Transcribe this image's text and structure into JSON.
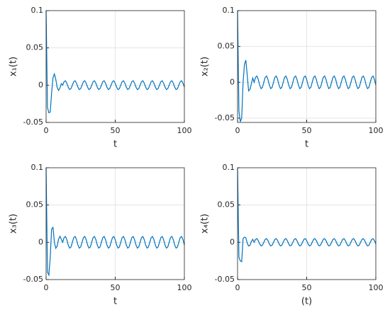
{
  "chart_data": [
    {
      "type": "line",
      "xlabel": "t",
      "ylabel": "x₁(t)",
      "color": "#0072bd",
      "grid": true,
      "xlim": [
        0,
        100
      ],
      "ylim": [
        -0.05,
        0.1
      ],
      "xticks": [
        0,
        50,
        100
      ],
      "yticks": [
        -0.05,
        0,
        0.05,
        0.1
      ],
      "x": [
        0,
        1,
        2,
        3,
        4,
        5,
        6,
        7,
        8,
        9,
        10,
        11,
        12,
        13,
        14,
        15,
        16,
        17,
        18,
        19,
        20,
        21,
        22,
        23,
        24,
        25,
        26,
        27,
        28,
        29,
        30,
        31,
        32,
        33,
        34,
        35,
        36,
        37,
        38,
        39,
        40,
        41,
        42,
        43,
        44,
        45,
        46,
        47,
        48,
        49,
        50,
        51,
        52,
        53,
        54,
        55,
        56,
        57,
        58,
        59,
        60,
        61,
        62,
        63,
        64,
        65,
        66,
        67,
        68,
        69,
        70,
        71,
        72,
        73,
        74,
        75,
        76,
        77,
        78,
        79,
        80,
        81,
        82,
        83,
        84,
        85,
        86,
        87,
        88,
        89,
        90,
        91,
        92,
        93,
        94,
        95,
        96,
        97,
        98,
        99,
        100
      ],
      "values": [
        0.1,
        -0.03,
        -0.037,
        -0.036,
        -0.01,
        0.01,
        0.015,
        0.008,
        -0.003,
        -0.007,
        -0.004,
        0.002,
        0,
        0.0047,
        0.0059,
        0.0026,
        -0.0026,
        -0.0059,
        -0.0047,
        0,
        0.0047,
        0.0059,
        0.0026,
        -0.0026,
        -0.0059,
        -0.0047,
        0,
        0.0047,
        0.0059,
        0.0026,
        -0.0026,
        -0.0059,
        -0.0047,
        0,
        0.0047,
        0.0059,
        0.0026,
        -0.0026,
        -0.0059,
        -0.0047,
        0,
        0.0047,
        0.0059,
        0.0026,
        -0.0026,
        -0.0059,
        -0.0047,
        0,
        0.0047,
        0.0059,
        0.0026,
        -0.0026,
        -0.0059,
        -0.0047,
        0,
        0.0047,
        0.0059,
        0.0026,
        -0.0026,
        -0.0059,
        -0.0047,
        0,
        0.0047,
        0.0059,
        0.0026,
        -0.0026,
        -0.0059,
        -0.0047,
        0,
        0.0047,
        0.0059,
        0.0026,
        -0.0026,
        -0.0059,
        -0.0047,
        0,
        0.0047,
        0.0059,
        0.0026,
        -0.0026,
        -0.0059,
        -0.0047,
        0,
        0.0047,
        0.0059,
        0.0026,
        -0.0026,
        -0.0059,
        -0.0047,
        0,
        0.0047,
        0.0059,
        0.0026,
        -0.0026,
        -0.0059,
        -0.0047,
        0,
        0.0047,
        0.0059,
        0.0026,
        -0.0026
      ]
    },
    {
      "type": "line",
      "xlabel": "t",
      "ylabel": "x₂(t)",
      "color": "#0072bd",
      "grid": true,
      "xlim": [
        0,
        100
      ],
      "ylim": [
        -0.056,
        0.1
      ],
      "xticks": [
        0,
        50,
        100
      ],
      "yticks": [
        -0.05,
        0,
        0.05,
        0.1
      ],
      "x": [
        0,
        1,
        2,
        3,
        4,
        5,
        6,
        7,
        8,
        9,
        10,
        11,
        12,
        13,
        14,
        15,
        16,
        17,
        18,
        19,
        20,
        21,
        22,
        23,
        24,
        25,
        26,
        27,
        28,
        29,
        30,
        31,
        32,
        33,
        34,
        35,
        36,
        37,
        38,
        39,
        40,
        41,
        42,
        43,
        44,
        45,
        46,
        47,
        48,
        49,
        50,
        51,
        52,
        53,
        54,
        55,
        56,
        57,
        58,
        59,
        60,
        61,
        62,
        63,
        64,
        65,
        66,
        67,
        68,
        69,
        70,
        71,
        72,
        73,
        74,
        75,
        76,
        77,
        78,
        79,
        80,
        81,
        82,
        83,
        84,
        85,
        86,
        87,
        88,
        89,
        90,
        91,
        92,
        93,
        94,
        95,
        96,
        97,
        98,
        99,
        100
      ],
      "values": [
        0.1,
        -0.04,
        -0.055,
        -0.05,
        0,
        0.025,
        0.031,
        0.01,
        -0.012,
        -0.01,
        -0.002,
        0.006,
        0,
        0.007,
        0.0088,
        0.0039,
        -0.0039,
        -0.0088,
        -0.007,
        0,
        0.007,
        0.0088,
        0.0039,
        -0.0039,
        -0.0088,
        -0.007,
        0,
        0.007,
        0.0088,
        0.0039,
        -0.0039,
        -0.0088,
        -0.007,
        0,
        0.007,
        0.0088,
        0.0039,
        -0.0039,
        -0.0088,
        -0.007,
        0,
        0.007,
        0.0088,
        0.0039,
        -0.0039,
        -0.0088,
        -0.007,
        0,
        0.007,
        0.0088,
        0.0039,
        -0.0039,
        -0.0088,
        -0.007,
        0,
        0.007,
        0.0088,
        0.0039,
        -0.0039,
        -0.0088,
        -0.007,
        0,
        0.007,
        0.0088,
        0.0039,
        -0.0039,
        -0.0088,
        -0.007,
        0,
        0.007,
        0.0088,
        0.0039,
        -0.0039,
        -0.0088,
        -0.007,
        0,
        0.007,
        0.0088,
        0.0039,
        -0.0039,
        -0.0088,
        -0.007,
        0,
        0.007,
        0.0088,
        0.0039,
        -0.0039,
        -0.0088,
        -0.007,
        0,
        0.007,
        0.0088,
        0.0039,
        -0.0039,
        -0.0088,
        -0.007,
        0,
        0.007,
        0.0088,
        0.0039,
        -0.0039
      ]
    },
    {
      "type": "line",
      "xlabel": "t",
      "ylabel": "x₃(t)",
      "color": "#0072bd",
      "grid": true,
      "xlim": [
        0,
        100
      ],
      "ylim": [
        -0.05,
        0.1
      ],
      "xticks": [
        0,
        50,
        100
      ],
      "yticks": [
        -0.05,
        0,
        0.05,
        0.1
      ],
      "x": [
        0,
        1,
        2,
        3,
        4,
        5,
        6,
        7,
        8,
        9,
        10,
        11,
        12,
        13,
        14,
        15,
        16,
        17,
        18,
        19,
        20,
        21,
        22,
        23,
        24,
        25,
        26,
        27,
        28,
        29,
        30,
        31,
        32,
        33,
        34,
        35,
        36,
        37,
        38,
        39,
        40,
        41,
        42,
        43,
        44,
        45,
        46,
        47,
        48,
        49,
        50,
        51,
        52,
        53,
        54,
        55,
        56,
        57,
        58,
        59,
        60,
        61,
        62,
        63,
        64,
        65,
        66,
        67,
        68,
        69,
        70,
        71,
        72,
        73,
        74,
        75,
        76,
        77,
        78,
        79,
        80,
        81,
        82,
        83,
        84,
        85,
        86,
        87,
        88,
        89,
        90,
        91,
        92,
        93,
        94,
        95,
        96,
        97,
        98,
        99,
        100
      ],
      "values": [
        0.1,
        -0.04,
        -0.044,
        -0.02,
        0.018,
        0.02,
        0,
        -0.008,
        -0.005,
        0.004,
        0.008,
        0.004,
        0,
        0.0063,
        0.0078,
        0.0035,
        -0.0035,
        -0.0078,
        -0.0063,
        0,
        0.0063,
        0.0078,
        0.0035,
        -0.0035,
        -0.0078,
        -0.0063,
        0,
        0.0063,
        0.0078,
        0.0035,
        -0.0035,
        -0.0078,
        -0.0063,
        0,
        0.0063,
        0.0078,
        0.0035,
        -0.0035,
        -0.0078,
        -0.0063,
        0,
        0.0063,
        0.0078,
        0.0035,
        -0.0035,
        -0.0078,
        -0.0063,
        0,
        0.0063,
        0.0078,
        0.0035,
        -0.0035,
        -0.0078,
        -0.0063,
        0,
        0.0063,
        0.0078,
        0.0035,
        -0.0035,
        -0.0078,
        -0.0063,
        0,
        0.0063,
        0.0078,
        0.0035,
        -0.0035,
        -0.0078,
        -0.0063,
        0,
        0.0063,
        0.0078,
        0.0035,
        -0.0035,
        -0.0078,
        -0.0063,
        0,
        0.0063,
        0.0078,
        0.0035,
        -0.0035,
        -0.0078,
        -0.0063,
        0,
        0.0063,
        0.0078,
        0.0035,
        -0.0035,
        -0.0078,
        -0.0063,
        0,
        0.0063,
        0.0078,
        0.0035,
        -0.0035,
        -0.0078,
        -0.0063,
        0,
        0.0063,
        0.0078,
        0.0035,
        -0.0035
      ]
    },
    {
      "type": "line",
      "xlabel": "(t)",
      "ylabel": "x₄(t)",
      "color": "#0072bd",
      "grid": true,
      "xlim": [
        0,
        100
      ],
      "ylim": [
        -0.05,
        0.1
      ],
      "xticks": [
        0,
        50,
        100
      ],
      "yticks": [
        -0.05,
        0,
        0.05,
        0.1
      ],
      "x": [
        0,
        1,
        2,
        3,
        4,
        5,
        6,
        7,
        8,
        9,
        10,
        11,
        12,
        13,
        14,
        15,
        16,
        17,
        18,
        19,
        20,
        21,
        22,
        23,
        24,
        25,
        26,
        27,
        28,
        29,
        30,
        31,
        32,
        33,
        34,
        35,
        36,
        37,
        38,
        39,
        40,
        41,
        42,
        43,
        44,
        45,
        46,
        47,
        48,
        49,
        50,
        51,
        52,
        53,
        54,
        55,
        56,
        57,
        58,
        59,
        60,
        61,
        62,
        63,
        64,
        65,
        66,
        67,
        68,
        69,
        70,
        71,
        72,
        73,
        74,
        75,
        76,
        77,
        78,
        79,
        80,
        81,
        82,
        83,
        84,
        85,
        86,
        87,
        88,
        89,
        90,
        91,
        92,
        93,
        94,
        95,
        96,
        97,
        98,
        99,
        100
      ],
      "values": [
        0.1,
        -0.02,
        -0.025,
        -0.026,
        0.005,
        0.007,
        0.006,
        -0.001,
        -0.005,
        -0.004,
        0.001,
        0.004,
        0,
        0.0039,
        0.0049,
        0.0022,
        -0.0022,
        -0.0049,
        -0.0039,
        0,
        0.0039,
        0.0049,
        0.0022,
        -0.0022,
        -0.0049,
        -0.0039,
        0,
        0.0039,
        0.0049,
        0.0022,
        -0.0022,
        -0.0049,
        -0.0039,
        0,
        0.0039,
        0.0049,
        0.0022,
        -0.0022,
        -0.0049,
        -0.0039,
        0,
        0.0039,
        0.0049,
        0.0022,
        -0.0022,
        -0.0049,
        -0.0039,
        0,
        0.0039,
        0.0049,
        0.0022,
        -0.0022,
        -0.0049,
        -0.0039,
        0,
        0.0039,
        0.0049,
        0.0022,
        -0.0022,
        -0.0049,
        -0.0039,
        0,
        0.0039,
        0.0049,
        0.0022,
        -0.0022,
        -0.0049,
        -0.0039,
        0,
        0.0039,
        0.0049,
        0.0022,
        -0.0022,
        -0.0049,
        -0.0039,
        0,
        0.0039,
        0.0049,
        0.0022,
        -0.0022,
        -0.0049,
        -0.0039,
        0,
        0.0039,
        0.0049,
        0.0022,
        -0.0022,
        -0.0049,
        -0.0039,
        0,
        0.0039,
        0.0049,
        0.0022,
        -0.0022,
        -0.0049,
        -0.0039,
        0,
        0.0039,
        0.0049,
        0.0022,
        -0.0022
      ]
    }
  ]
}
